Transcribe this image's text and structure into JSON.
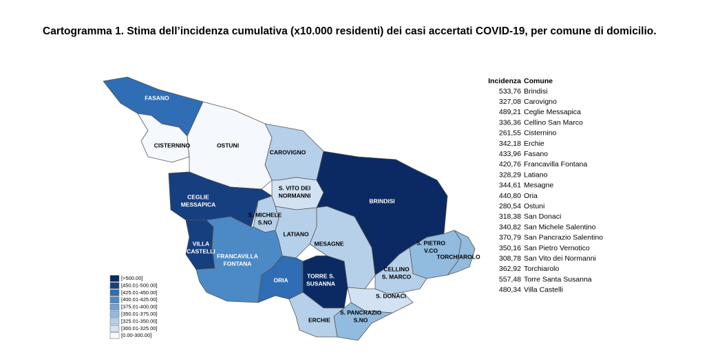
{
  "title": "Cartogramma 1. Stima dell’incidenza cumulativa (x10.000 residenti) dei casi accertati COVID-19, per comune di domicilio.",
  "table": {
    "headers": [
      "Incidenza",
      "Comune"
    ],
    "rows": [
      [
        "533,76",
        "Brindisi"
      ],
      [
        "327,08",
        "Carovigno"
      ],
      [
        "489,21",
        "Ceglie Messapica"
      ],
      [
        "336,36",
        "Cellino San Marco"
      ],
      [
        "261,55",
        "Cisternino"
      ],
      [
        "342,18",
        "Erchie"
      ],
      [
        "433,96",
        "Fasano"
      ],
      [
        "420,76",
        "Francavilla Fontana"
      ],
      [
        "328,29",
        "Latiano"
      ],
      [
        "344,61",
        "Mesagne"
      ],
      [
        "440,80",
        "Oria"
      ],
      [
        "280,54",
        "Ostuni"
      ],
      [
        "318,38",
        "San Donaci"
      ],
      [
        "340,82",
        "San Michele Salentino"
      ],
      [
        "370,79",
        "San Pancrazio Salentino"
      ],
      [
        "350,16",
        "San Pietro Vernotico"
      ],
      [
        "308,78",
        "San Vito dei Normanni"
      ],
      [
        "362,92",
        "Torchiarolo"
      ],
      [
        "557,48",
        "Torre Santa Susanna"
      ],
      [
        "480,34",
        "Villa Castelli"
      ]
    ]
  },
  "legend": [
    "[>500.00]",
    "[450.01-500.00]",
    "[425.01-450.00]",
    "[400.01-425.00]",
    "[375.01-400.00]",
    "[350.01-375.00]",
    "[325.01-350.00]",
    "[300.01-325.00]",
    "[0.00-300.00]"
  ],
  "map_labels": [
    [
      "FASANO"
    ],
    [
      "CISTERNINO"
    ],
    [
      "OSTUNI"
    ],
    [
      "CAROVIGNO"
    ],
    [
      "S. VITO DEI",
      "NORMANNI"
    ],
    [
      "CEGLIE",
      "MESSAPICA"
    ],
    [
      "BRINDISI"
    ],
    [
      "S. MICHELE",
      "S.NO"
    ],
    [
      "LATIANO"
    ],
    [
      "MESAGNE"
    ],
    [
      "VILLA",
      "CASTELLI"
    ],
    [
      "FRANCAVILLA",
      "FONTANA"
    ],
    [
      "ORIA"
    ],
    [
      "TORRE S.",
      "SUSANNA"
    ],
    [
      "S. PIETRO",
      "V.CO"
    ],
    [
      "TORCHIAROLO"
    ],
    [
      "CELLINO",
      "S. MARCO"
    ],
    [
      "S. DONACI"
    ],
    [
      "S. PANCRAZIO",
      "S.NO"
    ],
    [
      "ERCHIE"
    ]
  ]
}
